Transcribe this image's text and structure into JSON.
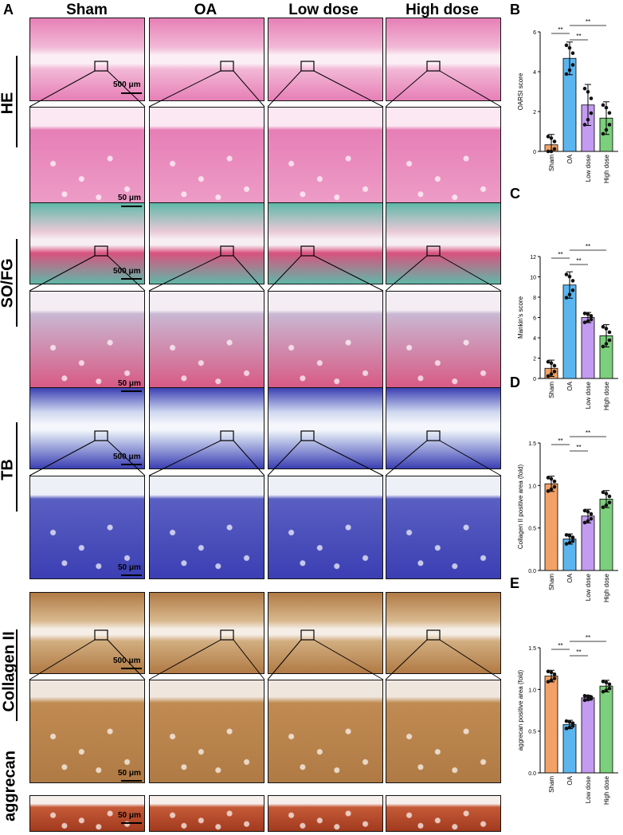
{
  "figure": {
    "panel_letters": [
      "A",
      "B",
      "C",
      "D",
      "E"
    ],
    "column_headers": [
      "Sham",
      "OA",
      "Low dose",
      "High dose"
    ],
    "row_labels": [
      "HE",
      "SO/FG",
      "TB",
      "Collagen II",
      "aggrecan"
    ],
    "scale_labels": {
      "he_low": "500 μm",
      "he_high": "50 μm",
      "sofg_low": "500 μm",
      "sofg_high": "50 μm",
      "tb_low": "500 μm",
      "tb_high": "50 μm",
      "col_low": "500 μm",
      "col_high": "50 μm",
      "agg_high": "50 μm"
    },
    "stain_colors": {
      "he_bg": "#f2b8d6",
      "he_tissue": "#e67fb6",
      "sofg_pink": "#d9527e",
      "sofg_green": "#5fb8a8",
      "tb_blue": "#3b3fb3",
      "tb_light": "#cfd8ef",
      "col_brown": "#b07a45",
      "agg_red": "#a23a1f"
    }
  },
  "chart_data": [
    {
      "type": "bar",
      "panel": "B",
      "categories": [
        "Sham",
        "OA",
        "Low dose",
        "High dose"
      ],
      "values": [
        0.33,
        4.67,
        2.33,
        1.67
      ],
      "errors": [
        0.52,
        0.82,
        1.03,
        0.82
      ],
      "ylabel": "OARSI score",
      "ylim": [
        0,
        6
      ],
      "yticks": [
        0,
        2,
        4,
        6
      ],
      "significance": [
        "**",
        "**",
        "**"
      ],
      "colors": [
        "#f2a266",
        "#5bb6f0",
        "#c39bf0",
        "#7ccf7c"
      ]
    },
    {
      "type": "bar",
      "panel": "C",
      "categories": [
        "Sham",
        "OA",
        "Low dose",
        "High dose"
      ],
      "values": [
        1.0,
        9.2,
        6.0,
        4.2
      ],
      "errors": [
        0.8,
        1.3,
        0.5,
        1.1
      ],
      "ylabel": "Mankin's score",
      "ylim": [
        0,
        12
      ],
      "yticks": [
        0,
        2,
        4,
        6,
        8,
        10,
        12
      ],
      "significance": [
        "**",
        "**",
        "**"
      ],
      "colors": [
        "#f2a266",
        "#5bb6f0",
        "#c39bf0",
        "#7ccf7c"
      ]
    },
    {
      "type": "bar",
      "panel": "D",
      "categories": [
        "Sham",
        "OA",
        "Low dose",
        "High dose"
      ],
      "values": [
        1.02,
        0.37,
        0.64,
        0.84
      ],
      "errors": [
        0.09,
        0.06,
        0.08,
        0.1
      ],
      "ylabel": "Collagen II positive area (fold)",
      "ylim": [
        0,
        1.5
      ],
      "yticks": [
        0.0,
        0.5,
        1.0,
        1.5
      ],
      "significance": [
        "**",
        "**",
        "**"
      ],
      "colors": [
        "#f2a266",
        "#5bb6f0",
        "#c39bf0",
        "#7ccf7c"
      ]
    },
    {
      "type": "bar",
      "panel": "E",
      "categories": [
        "Sham",
        "OA",
        "Low dose",
        "High dose"
      ],
      "values": [
        1.16,
        0.58,
        0.9,
        1.04
      ],
      "errors": [
        0.07,
        0.05,
        0.03,
        0.07
      ],
      "ylabel": "aggrecan positive area (fold)",
      "ylim": [
        0,
        1.5
      ],
      "yticks": [
        0.0,
        0.5,
        1.0,
        1.5
      ],
      "significance": [
        "**",
        "**",
        "**"
      ],
      "colors": [
        "#f2a266",
        "#5bb6f0",
        "#c39bf0",
        "#7ccf7c"
      ]
    }
  ]
}
